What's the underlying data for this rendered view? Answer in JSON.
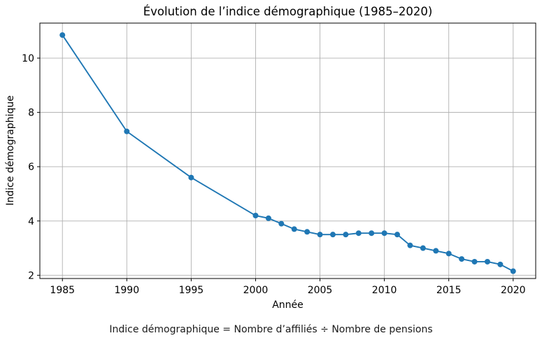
{
  "chart_data": {
    "type": "line",
    "title": "Évolution de l’indice démographique (1985–2020)",
    "xlabel": "Année",
    "ylabel": "Indice démographique",
    "caption": "Indice démographique = Nombre d’affiliés ÷ Nombre de pensions",
    "x": [
      1985,
      1990,
      1995,
      2000,
      2001,
      2002,
      2003,
      2004,
      2005,
      2006,
      2007,
      2008,
      2009,
      2010,
      2011,
      2012,
      2013,
      2014,
      2015,
      2016,
      2017,
      2018,
      2019,
      2020
    ],
    "values": [
      10.85,
      7.3,
      5.6,
      4.2,
      4.1,
      3.9,
      3.7,
      3.6,
      3.5,
      3.5,
      3.5,
      3.55,
      3.55,
      3.55,
      3.5,
      3.1,
      3.0,
      2.9,
      2.8,
      2.6,
      2.5,
      2.5,
      2.4,
      2.15
    ],
    "xticks": [
      "1985",
      "1990",
      "1995",
      "2000",
      "2005",
      "2010",
      "2015",
      "2020"
    ],
    "xtick_values": [
      1985,
      1990,
      1995,
      2000,
      2005,
      2010,
      2015,
      2020
    ],
    "yticks": [
      "2",
      "4",
      "6",
      "8",
      "10"
    ],
    "ytick_values": [
      2,
      4,
      6,
      8,
      10
    ],
    "xlim": [
      1983.25,
      2021.75
    ],
    "ylim": [
      1.88,
      11.29
    ],
    "grid": true,
    "legend": "none",
    "colors": {
      "line": "#1f77b4",
      "marker": "#1f77b4",
      "grid": "#b0b0b0",
      "spine": "#000000",
      "text": "#000000",
      "background": "#ffffff"
    }
  }
}
